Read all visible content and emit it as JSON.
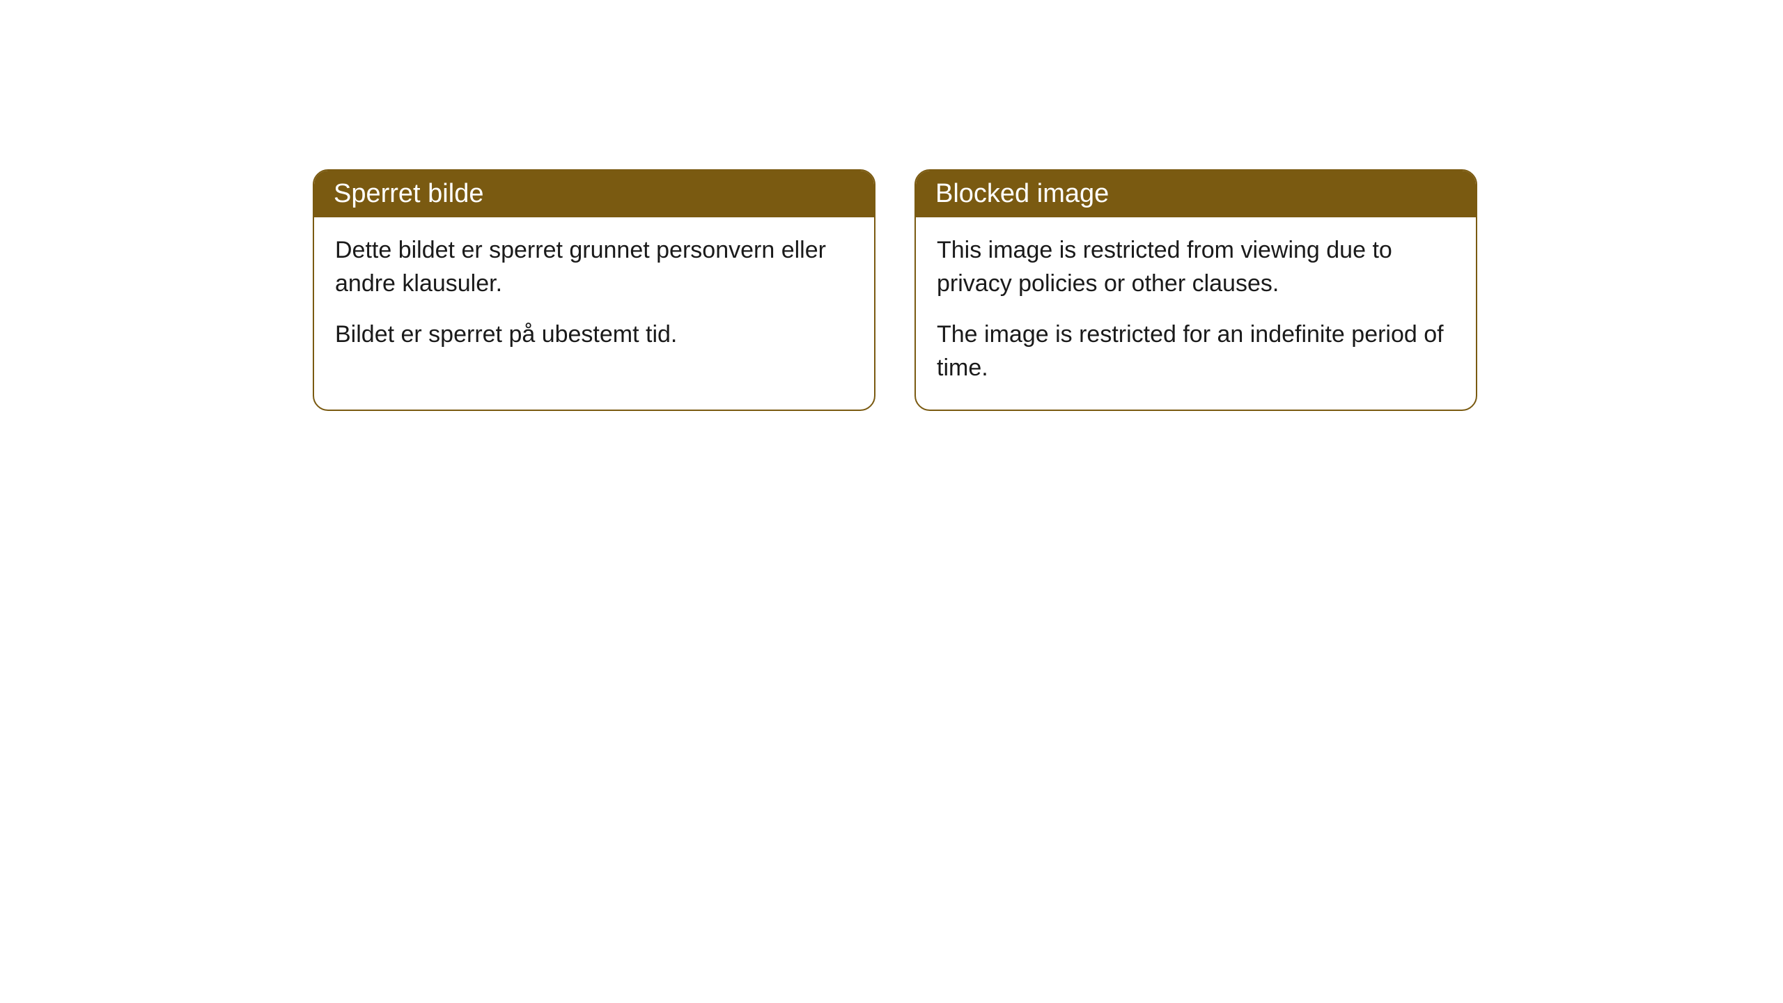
{
  "cards": [
    {
      "title": "Sperret bilde",
      "paragraph1": "Dette bildet er sperret grunnet personvern eller andre klausuler.",
      "paragraph2": "Bildet er sperret på ubestemt tid."
    },
    {
      "title": "Blocked image",
      "paragraph1": "This image is restricted from viewing due to privacy policies or other clauses.",
      "paragraph2": "The image is restricted for an indefinite period of time."
    }
  ],
  "style": {
    "header_background": "#7a5a11",
    "header_text_color": "#ffffff",
    "border_color": "#7a5a11",
    "body_background": "#ffffff",
    "body_text_color": "#1a1a1a",
    "border_radius": 22,
    "title_fontsize": 38,
    "body_fontsize": 34
  }
}
